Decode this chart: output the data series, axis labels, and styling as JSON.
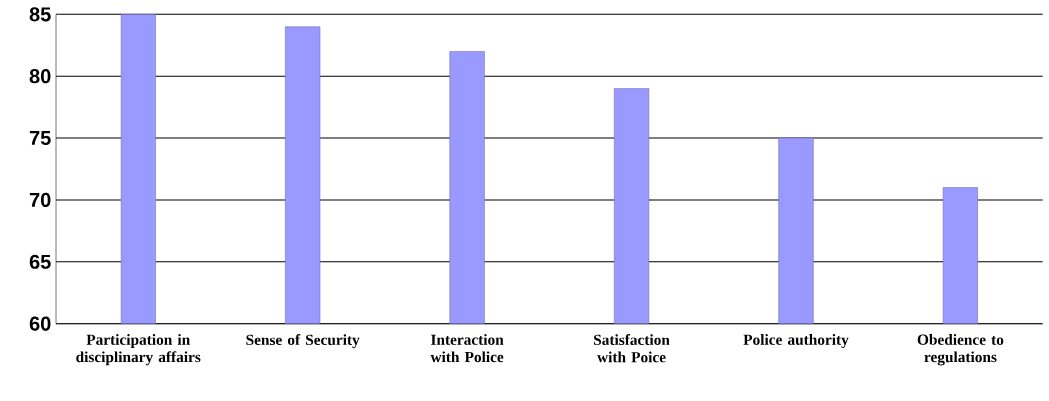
{
  "chart_data": {
    "type": "bar",
    "categories": [
      "Participation in disciplinary affairs",
      "Sense of Security",
      "Interaction with Police",
      "Satisfaction with Poice",
      "Police authority",
      "Obedience to regulations"
    ],
    "values": [
      85,
      84,
      82,
      79,
      75,
      71
    ],
    "color": "#9999ff",
    "ylim": [
      60,
      85
    ],
    "yticks": [
      60,
      65,
      70,
      75,
      80,
      85
    ],
    "grid": "y"
  }
}
